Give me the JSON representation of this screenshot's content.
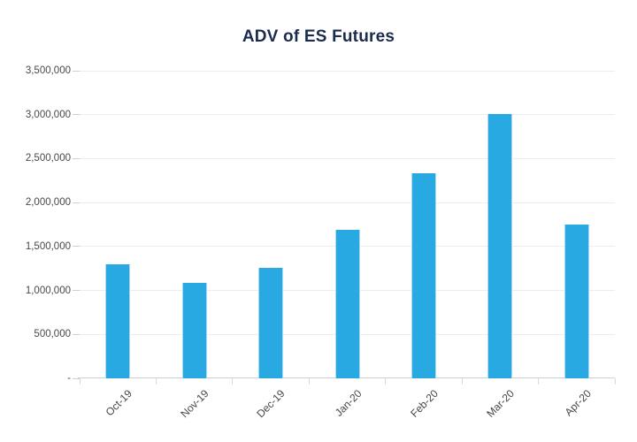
{
  "chart_data": {
    "type": "bar",
    "title": "ADV of ES Futures",
    "categories": [
      "Oct-19",
      "Nov-19",
      "Dec-19",
      "Jan-20",
      "Feb-20",
      "Mar-20",
      "Apr-20"
    ],
    "values": [
      1300000,
      1090000,
      1260000,
      1690000,
      2330000,
      3010000,
      1750000
    ],
    "xlabel": "",
    "ylabel": "",
    "ylim": [
      0,
      3500000
    ],
    "y_ticks": [
      {
        "value": 0,
        "label": "-"
      },
      {
        "value": 500000,
        "label": "500,000"
      },
      {
        "value": 1000000,
        "label": "1,000,000"
      },
      {
        "value": 1500000,
        "label": "1,500,000"
      },
      {
        "value": 2000000,
        "label": "2,000,000"
      },
      {
        "value": 2500000,
        "label": "2,500,000"
      },
      {
        "value": 3000000,
        "label": "3,000,000"
      },
      {
        "value": 3500000,
        "label": "3,500,000"
      }
    ],
    "grid": true,
    "legend_position": "none",
    "colors": {
      "bar_fill": "#29A9E1",
      "bar_edge": "#A9DCF4",
      "title_text": "#1B2B4C",
      "axis_label_text": "#44484C",
      "gridline": "#ECEDEF",
      "axis_line": "#CDD1D4",
      "tick_mark": "#CDD1D4",
      "boundary_tick": "#D9DCDE"
    }
  }
}
